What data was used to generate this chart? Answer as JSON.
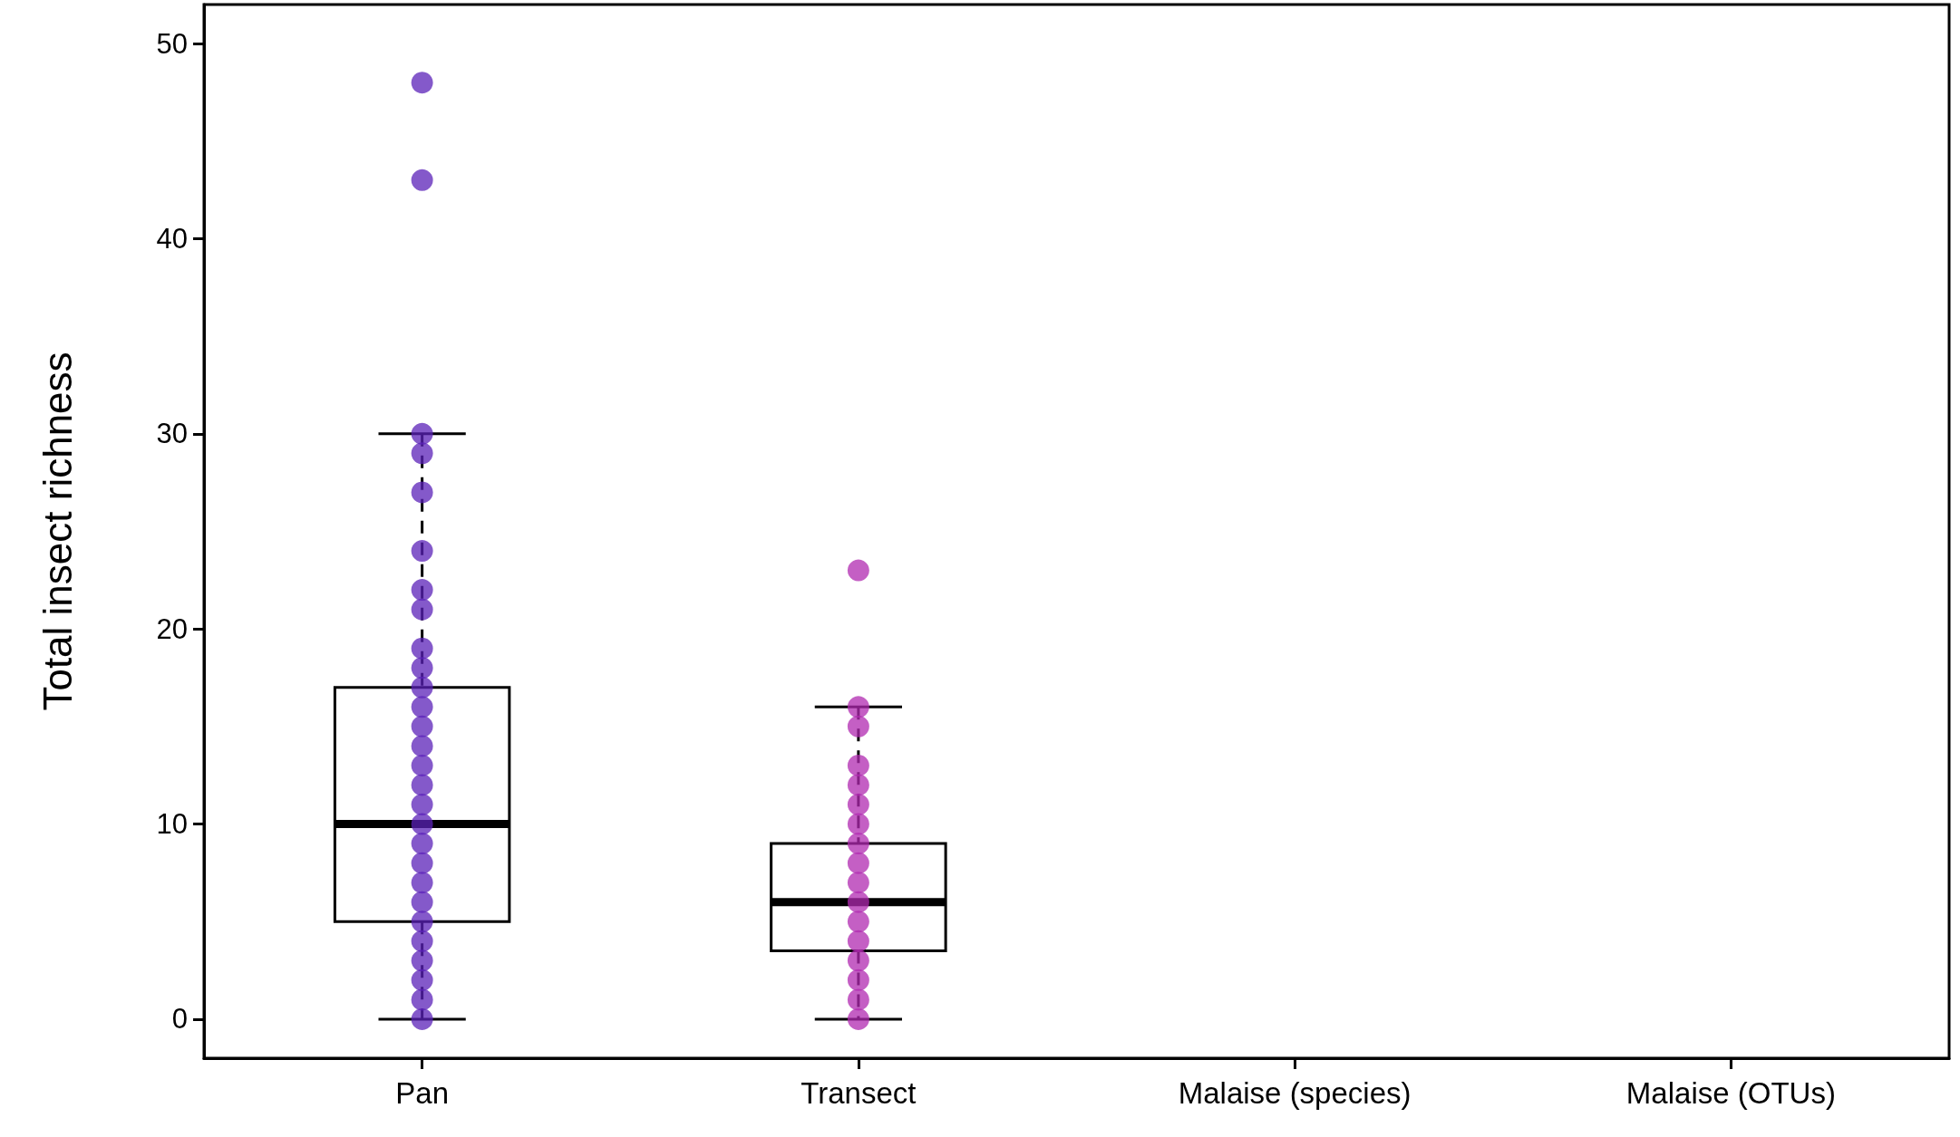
{
  "chart_data": {
    "type": "box",
    "ylabel": "Total insect richness",
    "categories": [
      "Pan",
      "Transect",
      "Malaise (species)",
      "Malaise (OTUs)"
    ],
    "boxes": [
      {
        "low": 0,
        "q1": 5,
        "median": 10,
        "q3": 17,
        "high": 30
      },
      {
        "low": 0,
        "q1": 3.5,
        "median": 6,
        "q3": 9,
        "high": 16
      },
      null,
      null
    ],
    "series": [
      {
        "type": "scatter",
        "color": "#5b22b8",
        "x": [
          "Pan",
          "Pan",
          "Pan",
          "Pan",
          "Pan",
          "Pan",
          "Pan",
          "Pan",
          "Pan",
          "Pan",
          "Pan",
          "Pan",
          "Pan",
          "Pan",
          "Pan",
          "Pan",
          "Pan",
          "Pan",
          "Pan",
          "Pan",
          "Pan",
          "Pan",
          "Pan",
          "Pan",
          "Pan",
          "Pan",
          "Pan",
          "Pan"
        ],
        "values": [
          48,
          43,
          30,
          29,
          27,
          24,
          22,
          21,
          19,
          18,
          17,
          16,
          15,
          14,
          13,
          12,
          11,
          10,
          9,
          8,
          7,
          6,
          5,
          4,
          3,
          2,
          1,
          0
        ]
      },
      {
        "type": "scatter",
        "color": "#b02ab0",
        "x": [
          "Transect",
          "Transect",
          "Transect",
          "Transect",
          "Transect",
          "Transect",
          "Transect",
          "Transect",
          "Transect",
          "Transect",
          "Transect",
          "Transect",
          "Transect",
          "Transect",
          "Transect",
          "Transect",
          "Transect"
        ],
        "values": [
          23,
          16,
          15,
          13,
          12,
          11,
          10,
          9,
          8,
          7,
          6,
          5,
          4,
          3,
          2,
          1,
          0
        ]
      }
    ],
    "ylim": [
      -2,
      52
    ],
    "yticks": [
      0,
      10,
      20,
      30,
      40,
      50
    ],
    "grid": false,
    "marker": "circle"
  }
}
